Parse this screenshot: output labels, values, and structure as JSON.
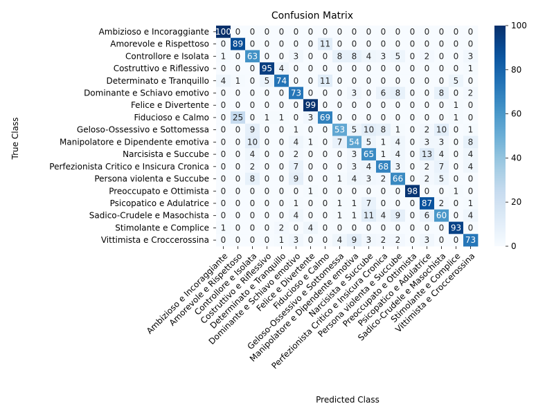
{
  "chart_data": {
    "type": "heatmap",
    "title": "Confusion Matrix",
    "xlabel": "Predicted Class",
    "ylabel": "True Class",
    "labels": [
      "Ambizioso e Incoraggiante",
      "Amorevole e Rispettoso",
      "Controllore e Isolata",
      "Costruttivo e Riflessivo",
      "Determinato e Tranquillo",
      "Dominante e Schiavo emotivo",
      "Felice e Divertente",
      "Fiducioso e Calmo",
      "Geloso-Ossessivo e Sottomessa",
      "Manipolatore e Dipendente emotiva",
      "Narcisista e Succube",
      "Perfezionista Critico e Insicura Cronica",
      "Persona violenta e Succube",
      "Preoccupato e Ottimista",
      "Psicopatico e Adulatrice",
      "Sadico-Crudele e Masochista",
      "Stimolante e Complice",
      "Vittimista e Croccerossina"
    ],
    "matrix": [
      [
        100,
        0,
        0,
        0,
        0,
        0,
        0,
        0,
        0,
        0,
        0,
        0,
        0,
        0,
        0,
        0,
        0,
        0
      ],
      [
        0,
        89,
        0,
        0,
        0,
        0,
        0,
        11,
        0,
        0,
        0,
        0,
        0,
        0,
        0,
        0,
        0,
        0
      ],
      [
        1,
        0,
        63,
        0,
        0,
        3,
        0,
        0,
        8,
        8,
        4,
        3,
        5,
        0,
        2,
        0,
        0,
        3
      ],
      [
        0,
        0,
        0,
        95,
        4,
        0,
        0,
        0,
        0,
        0,
        0,
        0,
        0,
        0,
        0,
        0,
        0,
        1
      ],
      [
        4,
        1,
        0,
        5,
        74,
        0,
        0,
        11,
        0,
        0,
        0,
        0,
        0,
        0,
        0,
        0,
        5,
        0
      ],
      [
        0,
        0,
        0,
        0,
        0,
        73,
        0,
        0,
        0,
        3,
        0,
        6,
        8,
        0,
        0,
        8,
        0,
        2
      ],
      [
        0,
        0,
        0,
        0,
        0,
        0,
        99,
        0,
        0,
        0,
        0,
        0,
        0,
        0,
        0,
        0,
        1,
        0
      ],
      [
        0,
        25,
        0,
        1,
        1,
        0,
        3,
        69,
        0,
        0,
        0,
        0,
        0,
        0,
        0,
        0,
        1,
        0
      ],
      [
        0,
        0,
        9,
        0,
        0,
        1,
        0,
        0,
        53,
        5,
        10,
        8,
        1,
        0,
        2,
        10,
        0,
        1
      ],
      [
        0,
        0,
        10,
        0,
        0,
        4,
        1,
        0,
        7,
        54,
        5,
        1,
        4,
        0,
        3,
        3,
        0,
        8
      ],
      [
        0,
        0,
        4,
        0,
        0,
        2,
        0,
        0,
        0,
        3,
        65,
        1,
        4,
        0,
        13,
        4,
        0,
        4
      ],
      [
        0,
        0,
        2,
        0,
        0,
        7,
        0,
        0,
        0,
        3,
        4,
        68,
        3,
        0,
        2,
        7,
        0,
        4
      ],
      [
        0,
        0,
        8,
        0,
        0,
        9,
        0,
        0,
        1,
        4,
        3,
        2,
        66,
        0,
        2,
        5,
        0,
        0
      ],
      [
        0,
        0,
        0,
        0,
        0,
        0,
        1,
        0,
        0,
        0,
        0,
        0,
        0,
        98,
        0,
        0,
        1,
        0
      ],
      [
        0,
        0,
        0,
        0,
        0,
        1,
        0,
        0,
        1,
        1,
        7,
        0,
        0,
        0,
        87,
        2,
        0,
        1
      ],
      [
        0,
        0,
        0,
        0,
        0,
        4,
        0,
        0,
        1,
        1,
        11,
        4,
        9,
        0,
        6,
        60,
        0,
        4
      ],
      [
        1,
        0,
        0,
        0,
        2,
        0,
        4,
        0,
        0,
        0,
        0,
        0,
        0,
        0,
        0,
        0,
        93,
        0
      ],
      [
        0,
        0,
        0,
        0,
        1,
        3,
        0,
        0,
        4,
        9,
        3,
        2,
        2,
        0,
        3,
        0,
        0,
        73
      ]
    ],
    "colormap": "Blues",
    "vmin": 0,
    "vmax": 100,
    "colorbar_ticks": [
      0,
      20,
      40,
      60,
      80,
      100
    ]
  }
}
